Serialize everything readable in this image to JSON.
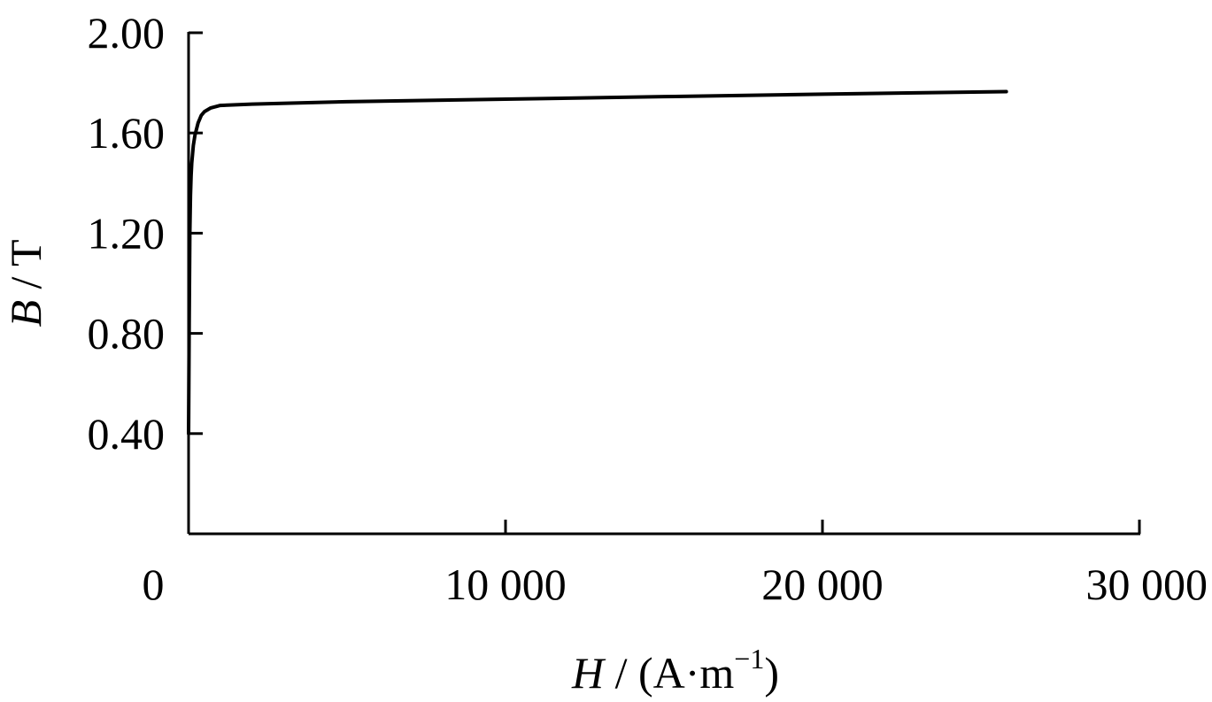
{
  "chart_data": {
    "type": "line",
    "title": "",
    "xlabel": {
      "var": "H",
      "rest": " / (A·m",
      "sup": "−1",
      "close": ")"
    },
    "ylabel": {
      "var": "B",
      "rest": " / T"
    },
    "xlim": [
      0,
      30000
    ],
    "ylim": [
      0,
      2.0
    ],
    "xticks": [
      {
        "value": 0,
        "label": "0"
      },
      {
        "value": 10000,
        "label": "10 000"
      },
      {
        "value": 20000,
        "label": "20 000"
      },
      {
        "value": 30000,
        "label": "30 000"
      }
    ],
    "yticks": [
      {
        "value": 0.4,
        "label": "0.40"
      },
      {
        "value": 0.8,
        "label": "0.80"
      },
      {
        "value": 1.2,
        "label": "1.20"
      },
      {
        "value": 1.6,
        "label": "1.60"
      },
      {
        "value": 2.0,
        "label": "2.00"
      }
    ],
    "grid": false,
    "series": [
      {
        "color": "#000000",
        "x": [
          0,
          20,
          40,
          60,
          80,
          100,
          150,
          200,
          300,
          400,
          500,
          700,
          1000,
          2000,
          5000,
          10000,
          15000,
          20000,
          25800
        ],
        "y": [
          0.4,
          0.85,
          1.2,
          1.35,
          1.43,
          1.48,
          1.55,
          1.59,
          1.64,
          1.67,
          1.685,
          1.7,
          1.71,
          1.715,
          1.725,
          1.735,
          1.745,
          1.755,
          1.765
        ]
      }
    ]
  }
}
